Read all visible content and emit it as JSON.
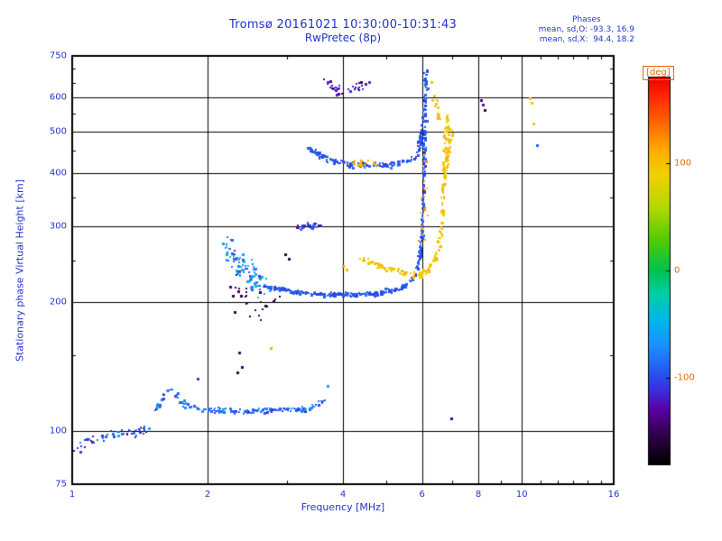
{
  "chart_data": {
    "type": "scatter",
    "title": "Tromsø 20161021 10:30:00-10:31:43",
    "subtitle": "RwPretec (8p)",
    "xlabel": "Frequency [MHz]",
    "ylabel": "Stationary phase Virtual Height [km]",
    "xscale": "log",
    "yscale": "log",
    "xlim": [
      1,
      16
    ],
    "ylim": [
      75,
      750
    ],
    "xticks": [
      1,
      2,
      4,
      6,
      8,
      10,
      16
    ],
    "yticks": [
      75,
      100,
      200,
      300,
      400,
      500,
      600,
      750
    ],
    "minor_xticks": [
      3,
      5,
      7,
      9,
      11,
      12,
      13,
      14,
      15
    ],
    "minor_yticks": [
      150,
      250,
      350,
      450,
      550,
      650,
      700
    ],
    "grid_x": [
      2,
      4,
      6,
      8,
      10
    ],
    "grid_y": [
      100,
      200,
      300,
      400,
      500,
      600
    ],
    "annotation": {
      "title": "Phases",
      "o_stats": "mean, sd,O: -93.3, 16.9",
      "x_stats": "mean, sd,X:  94.4, 18.2"
    },
    "colorbar": {
      "label": "[deg]",
      "min": -180,
      "max": 180,
      "ticks": [
        100,
        0,
        -100
      ],
      "stops": [
        [
          -180,
          "#000000"
        ],
        [
          -155,
          "#2a0040"
        ],
        [
          -130,
          "#5a00a0"
        ],
        [
          -110,
          "#3b2fe0"
        ],
        [
          -95,
          "#2255ee"
        ],
        [
          -70,
          "#1e90ff"
        ],
        [
          -45,
          "#00b8e8"
        ],
        [
          -20,
          "#00cfa0"
        ],
        [
          0,
          "#00c050"
        ],
        [
          30,
          "#55cc00"
        ],
        [
          60,
          "#b8d800"
        ],
        [
          90,
          "#f0d000"
        ],
        [
          110,
          "#ffb000"
        ],
        [
          140,
          "#ff6000"
        ],
        [
          165,
          "#ff2000"
        ],
        [
          180,
          "#e80000"
        ]
      ]
    },
    "colors": {
      "background": "#ffffff",
      "frame": "#000000",
      "text": "#2233cc",
      "colorbar_text": "#ee6600"
    },
    "series": [
      {
        "name": "noise-low-left",
        "phase": -100,
        "phase_sd": 45,
        "n": 60,
        "jitter": [
          0.014,
          0.012
        ],
        "path": [
          [
            1.0,
            90
          ],
          [
            1.07,
            93
          ],
          [
            1.15,
            97
          ],
          [
            1.25,
            99
          ],
          [
            1.32,
            98
          ],
          [
            1.42,
            100
          ],
          [
            1.5,
            102
          ]
        ]
      },
      {
        "name": "sporadic-e-trace",
        "phase": -85,
        "phase_sd": 30,
        "n": 170,
        "jitter": [
          0.005,
          0.006
        ],
        "path": [
          [
            1.52,
            110
          ],
          [
            1.6,
            121
          ],
          [
            1.66,
            126
          ],
          [
            1.74,
            117
          ],
          [
            1.84,
            113
          ],
          [
            2.0,
            112
          ],
          [
            2.4,
            111
          ],
          [
            2.9,
            112
          ],
          [
            3.3,
            112
          ],
          [
            3.5,
            114
          ],
          [
            3.65,
            119
          ]
        ]
      },
      {
        "name": "f1-leading-edge",
        "phase": -70,
        "phase_sd": 45,
        "n": 90,
        "jitter": [
          0.011,
          0.028
        ],
        "path": [
          [
            2.2,
            268
          ],
          [
            2.3,
            250
          ],
          [
            2.42,
            236
          ],
          [
            2.55,
            226
          ],
          [
            2.7,
            219
          ]
        ]
      },
      {
        "name": "dark-scatter-under-f1",
        "phase": -148,
        "phase_sd": 22,
        "n": 28,
        "jitter": [
          0.02,
          0.045
        ],
        "path": [
          [
            2.3,
            208
          ],
          [
            2.5,
            199
          ],
          [
            2.7,
            204
          ],
          [
            2.92,
            213
          ]
        ]
      },
      {
        "name": "f1-o-flat",
        "phase": -95,
        "phase_sd": 16,
        "n": 230,
        "jitter": [
          0.004,
          0.005
        ],
        "path": [
          [
            2.7,
            217
          ],
          [
            3.1,
            211
          ],
          [
            3.6,
            208
          ],
          [
            4.2,
            208
          ],
          [
            4.8,
            209
          ],
          [
            5.2,
            213
          ],
          [
            5.5,
            218
          ],
          [
            5.75,
            228
          ],
          [
            5.88,
            242
          ]
        ]
      },
      {
        "name": "f1-o-asymptote",
        "phase": -95,
        "phase_sd": 18,
        "n": 150,
        "jitter": [
          0.0035,
          0.008
        ],
        "path": [
          [
            5.88,
            244
          ],
          [
            5.97,
            272
          ],
          [
            6.02,
            315
          ],
          [
            6.05,
            380
          ],
          [
            6.07,
            460
          ],
          [
            6.09,
            545
          ],
          [
            6.11,
            640
          ],
          [
            6.12,
            690
          ]
        ]
      },
      {
        "name": "x1-diagonal",
        "phase": 95,
        "phase_sd": 16,
        "n": 60,
        "jitter": [
          0.006,
          0.007
        ],
        "path": [
          [
            4.35,
            253
          ],
          [
            4.7,
            245
          ],
          [
            5.1,
            238
          ],
          [
            5.5,
            233
          ],
          [
            5.85,
            230
          ]
        ]
      },
      {
        "name": "x1-asymptote",
        "phase": 95,
        "phase_sd": 16,
        "n": 140,
        "jitter": [
          0.0045,
          0.009
        ],
        "path": [
          [
            5.9,
            231
          ],
          [
            6.15,
            236
          ],
          [
            6.35,
            246
          ],
          [
            6.5,
            260
          ],
          [
            6.6,
            285
          ],
          [
            6.67,
            330
          ],
          [
            6.72,
            390
          ],
          [
            6.76,
            450
          ],
          [
            6.8,
            510
          ],
          [
            6.83,
            545
          ]
        ]
      },
      {
        "name": "x1-top-specks",
        "phase": 100,
        "phase_sd": 14,
        "n": 14,
        "jitter": [
          0.007,
          0.02
        ],
        "path": [
          [
            6.42,
            605
          ],
          [
            6.48,
            565
          ],
          [
            6.54,
            530
          ]
        ]
      },
      {
        "name": "x-specks-on-o-asymptote",
        "phase": 110,
        "phase_sd": 22,
        "n": 18,
        "jitter": [
          0.008,
          0.05
        ],
        "path": [
          [
            6.0,
            280
          ],
          [
            6.06,
            370
          ],
          [
            6.1,
            440
          ]
        ]
      },
      {
        "name": "f2-o-flat",
        "phase": -95,
        "phase_sd": 15,
        "n": 150,
        "jitter": [
          0.0045,
          0.006
        ],
        "path": [
          [
            3.32,
            460
          ],
          [
            3.5,
            442
          ],
          [
            3.72,
            430
          ],
          [
            4.0,
            423
          ],
          [
            4.4,
            418
          ],
          [
            4.9,
            417
          ],
          [
            5.3,
            421
          ],
          [
            5.6,
            428
          ],
          [
            5.82,
            440
          ]
        ]
      },
      {
        "name": "f2-o-asymptote",
        "phase": -95,
        "phase_sd": 16,
        "n": 50,
        "jitter": [
          0.004,
          0.012
        ],
        "path": [
          [
            5.86,
            448
          ],
          [
            5.94,
            468
          ],
          [
            6.0,
            500
          ],
          [
            6.05,
            545
          ],
          [
            6.08,
            585
          ]
        ]
      },
      {
        "name": "x2-asymptote",
        "phase": 95,
        "phase_sd": 14,
        "n": 40,
        "jitter": [
          0.005,
          0.012
        ],
        "path": [
          [
            6.72,
            392
          ],
          [
            6.82,
            425
          ],
          [
            6.9,
            462
          ],
          [
            6.97,
            500
          ]
        ]
      },
      {
        "name": "f2-orange-specks",
        "phase": 100,
        "phase_sd": 18,
        "n": 16,
        "jitter": [
          0.012,
          0.01
        ],
        "path": [
          [
            4.15,
            421
          ],
          [
            4.45,
            419
          ],
          [
            4.8,
            420
          ]
        ]
      },
      {
        "name": "segment-300km",
        "phase": -105,
        "phase_sd": 35,
        "n": 30,
        "jitter": [
          0.006,
          0.008
        ],
        "path": [
          [
            3.17,
            297
          ],
          [
            3.35,
            301
          ],
          [
            3.55,
            301
          ]
        ]
      },
      {
        "name": "top-dark-cluster",
        "phase": -130,
        "phase_sd": 28,
        "n": 32,
        "jitter": [
          0.009,
          0.011
        ],
        "path": [
          [
            3.68,
            641
          ],
          [
            3.85,
            627
          ],
          [
            4.02,
            619
          ],
          [
            4.2,
            627
          ],
          [
            4.38,
            641
          ]
        ]
      }
    ],
    "points": [
      [
        2.33,
        137,
        -150
      ],
      [
        2.38,
        141,
        -145
      ],
      [
        2.35,
        152,
        -140
      ],
      [
        2.76,
        156,
        112
      ],
      [
        2.97,
        258,
        -155
      ],
      [
        3.03,
        252,
        -150
      ],
      [
        3.7,
        127,
        -55
      ],
      [
        1.9,
        132,
        -100
      ],
      [
        4.0,
        242,
        115
      ],
      [
        4.08,
        238,
        108
      ],
      [
        4.5,
        646,
        -120
      ],
      [
        4.58,
        652,
        -110
      ],
      [
        6.3,
        652,
        96
      ],
      [
        6.95,
        107,
        -140
      ],
      [
        8.1,
        592,
        -135
      ],
      [
        8.2,
        576,
        -125
      ],
      [
        8.28,
        560,
        -150
      ],
      [
        10.4,
        598,
        98
      ],
      [
        10.5,
        584,
        92
      ],
      [
        10.6,
        522,
        96
      ],
      [
        10.82,
        465,
        -92
      ]
    ]
  }
}
